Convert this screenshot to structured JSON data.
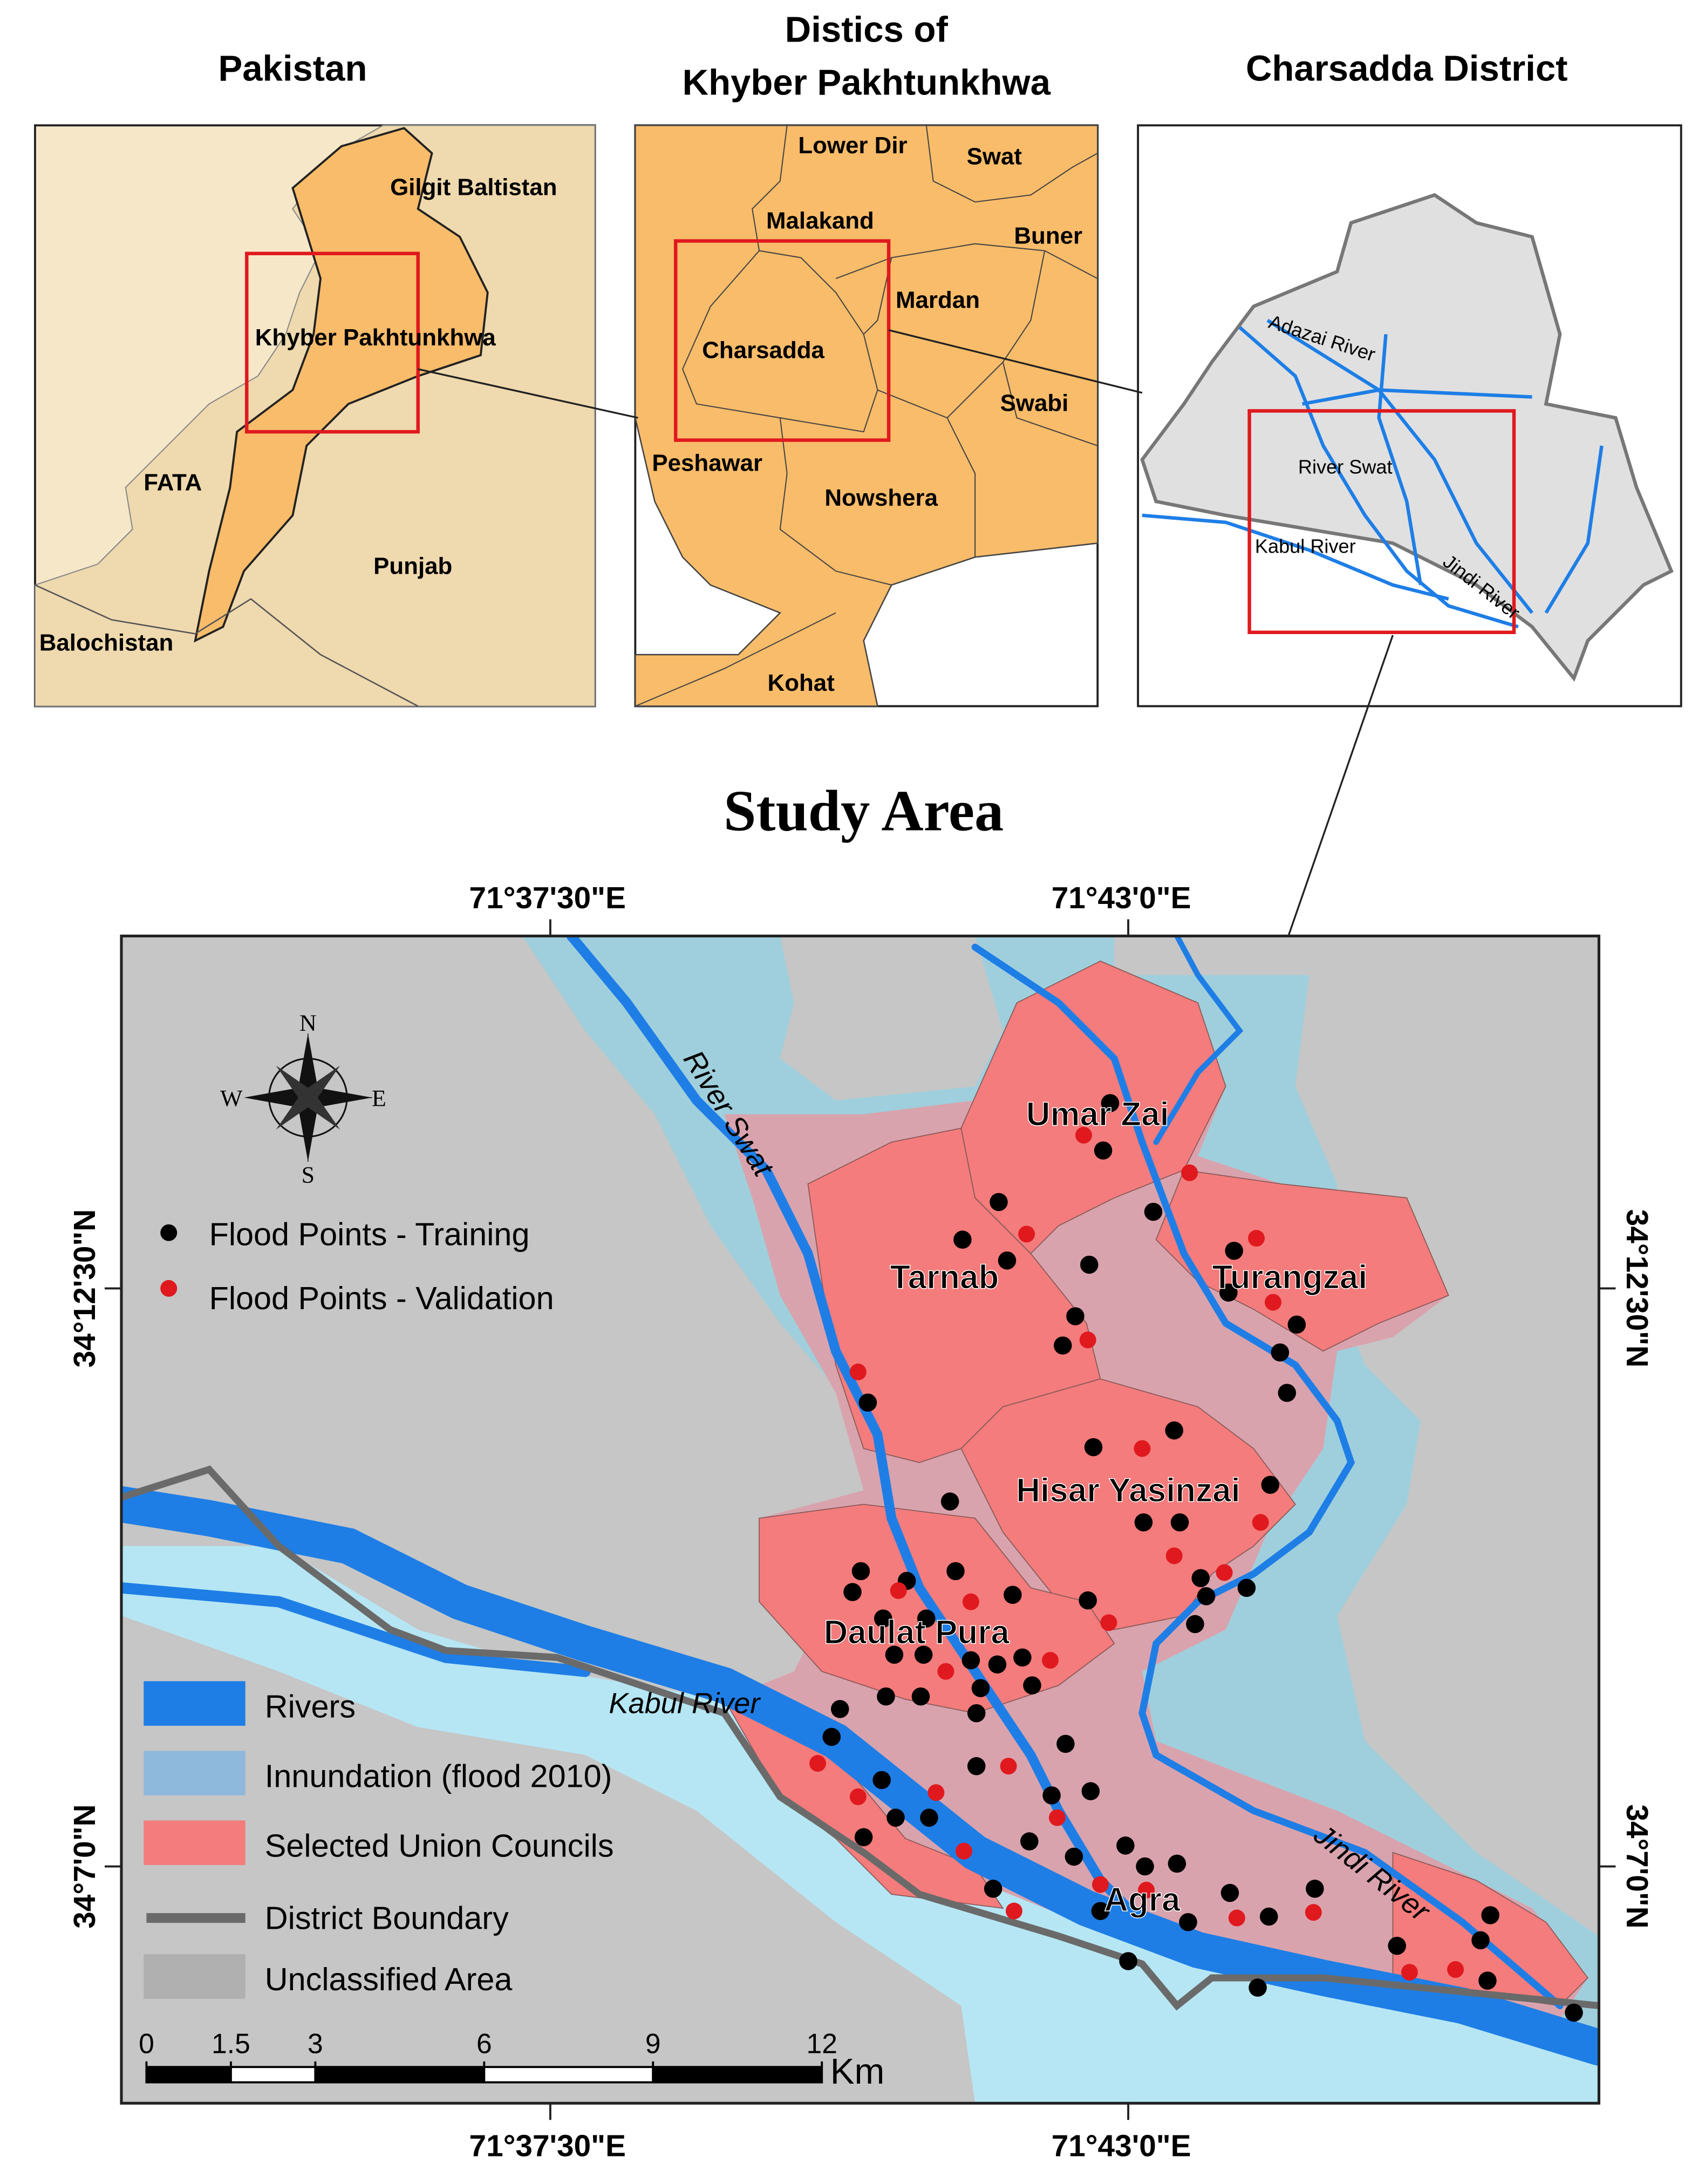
{
  "insets": [
    {
      "title": [
        "Pakistan"
      ],
      "labels": [
        "Gilgit Baltistan",
        "Khyber Pakhtunkhwa",
        "FATA",
        "Punjab",
        "Balochistan"
      ]
    },
    {
      "title": [
        "Distics of",
        "Khyber Pakhtunkhwa"
      ],
      "labels": [
        "Lower Dir",
        "Swat",
        "Malakand",
        "Buner",
        "Mardan",
        "Charsadda",
        "Swabi",
        "Peshawar",
        "Nowshera",
        "Kohat"
      ]
    },
    {
      "title": [
        "Charsadda District"
      ],
      "labels": [
        "Adazai River",
        "River Swat",
        "Kabul River",
        "Jindi River"
      ]
    }
  ],
  "main": {
    "title": "Study Area",
    "top_axis": [
      "71°37'30\"E",
      "71°43'0\"E"
    ],
    "bottom_axis": [
      "71°37'30\"E",
      "71°43'0\"E"
    ],
    "left_axis": [
      "34°12'30\"N",
      "34°7'0\"N"
    ],
    "right_axis": [
      "34°12'30\"N",
      "34°7'0\"N"
    ],
    "compass": [
      "N",
      "W",
      "E",
      "S"
    ],
    "place_labels": [
      "Umar Zai",
      "Tarnab",
      "Turangzai",
      "Hisar Yasinzai",
      "Daulat Pura",
      "Agra"
    ],
    "river_labels": [
      "River Swat",
      "Kabul River",
      "Jindi River"
    ],
    "points_legend": [
      "Flood Points - Training",
      "Flood Points - Validation"
    ],
    "legend": [
      "Rivers",
      "Innundation (flood 2010)",
      "Selected Union Councils",
      "District Boundary",
      "Unclassified Area"
    ],
    "scale_bar": {
      "ticks": [
        0,
        1.5,
        3,
        6,
        9,
        12
      ],
      "unit": "Km"
    }
  }
}
